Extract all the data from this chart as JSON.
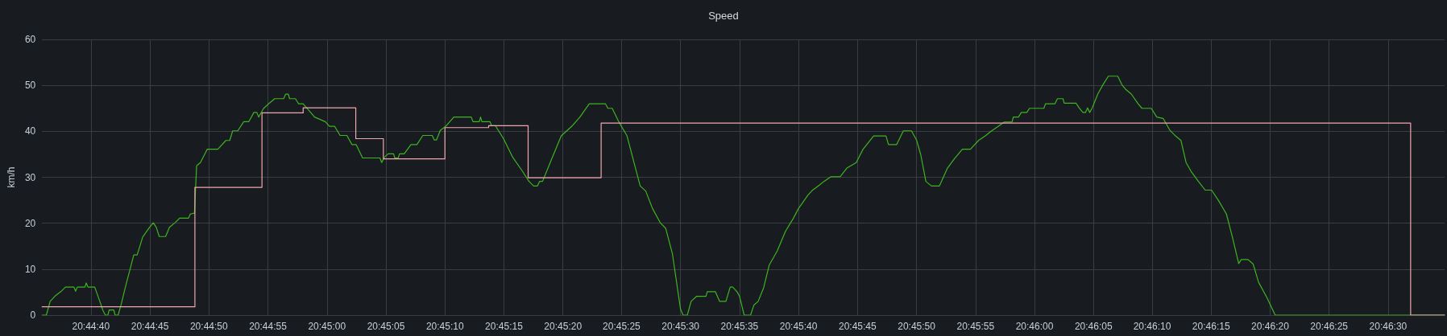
{
  "chart_data": {
    "type": "line",
    "title": "Speed",
    "ylabel": "km/h",
    "xlim": [
      20.74329,
      20.77633
    ],
    "ylim": [
      0,
      60
    ],
    "xticks": [
      {
        "value": 20.74444,
        "label": "20:44:40"
      },
      {
        "value": 20.74583,
        "label": "20:44:45"
      },
      {
        "value": 20.74722,
        "label": "20:44:50"
      },
      {
        "value": 20.74861,
        "label": "20:44:55"
      },
      {
        "value": 20.75,
        "label": "20:45:00"
      },
      {
        "value": 20.75139,
        "label": "20:45:05"
      },
      {
        "value": 20.75278,
        "label": "20:45:10"
      },
      {
        "value": 20.75417,
        "label": "20:45:15"
      },
      {
        "value": 20.75556,
        "label": "20:45:20"
      },
      {
        "value": 20.75694,
        "label": "20:45:25"
      },
      {
        "value": 20.75833,
        "label": "20:45:30"
      },
      {
        "value": 20.75972,
        "label": "20:45:35"
      },
      {
        "value": 20.76111,
        "label": "20:45:40"
      },
      {
        "value": 20.7625,
        "label": "20:45:45"
      },
      {
        "value": 20.76389,
        "label": "20:45:50"
      },
      {
        "value": 20.76528,
        "label": "20:45:55"
      },
      {
        "value": 20.76667,
        "label": "20:46:00"
      },
      {
        "value": 20.76806,
        "label": "20:46:05"
      },
      {
        "value": 20.76944,
        "label": "20:46:10"
      },
      {
        "value": 20.77083,
        "label": "20:46:15"
      },
      {
        "value": 20.77222,
        "label": "20:46:20"
      },
      {
        "value": 20.77361,
        "label": "20:46:25"
      },
      {
        "value": 20.775,
        "label": "20:46:30"
      }
    ],
    "yticks": [
      0,
      10,
      20,
      30,
      40,
      50,
      60
    ],
    "grid": true,
    "marker": "none",
    "line_style": "solid",
    "series": [
      {
        "color": "#3cb521",
        "x": [
          20.74329,
          20.74339,
          20.74348,
          20.74359,
          20.74373,
          20.74384,
          20.74404,
          20.74408,
          20.74412,
          20.7443,
          20.74433,
          20.74437,
          20.74453,
          20.74465,
          20.74472,
          20.74478,
          20.74484,
          20.74487,
          20.74498,
          20.74501,
          20.74508,
          20.74515,
          20.74525,
          20.74545,
          20.74553,
          20.74566,
          20.74582,
          20.74591,
          20.74598,
          20.74605,
          20.7462,
          20.74629,
          20.74642,
          20.74653,
          20.74674,
          20.74678,
          20.74688,
          20.74693,
          20.74702,
          20.74718,
          20.74743,
          20.74762,
          20.74771,
          20.74778,
          20.7479,
          20.74804,
          20.74816,
          20.74828,
          20.74835,
          20.74839,
          20.74851,
          20.74863,
          20.74877,
          20.74898,
          20.74903,
          20.74909,
          20.74912,
          20.74926,
          20.74933,
          20.74944,
          20.74971,
          20.74996,
          20.75006,
          20.75018,
          20.75031,
          20.75047,
          20.75059,
          20.75069,
          20.75084,
          20.75125,
          20.75129,
          20.75135,
          20.75144,
          20.75157,
          20.7516,
          20.75168,
          20.75171,
          20.75182,
          20.75198,
          20.75212,
          20.75226,
          20.75248,
          20.75253,
          20.75258,
          20.75267,
          20.7528,
          20.75299,
          20.7534,
          20.75344,
          20.75359,
          20.75362,
          20.75365,
          20.75384,
          20.75388,
          20.75397,
          20.75416,
          20.75438,
          20.7546,
          20.75476,
          20.75487,
          20.75496,
          20.75501,
          20.75508,
          20.75526,
          20.75552,
          20.75577,
          20.75596,
          20.75618,
          20.75656,
          20.75662,
          20.75672,
          20.75688,
          20.75707,
          20.75726,
          20.75738,
          20.75751,
          20.75767,
          20.75786,
          20.75798,
          20.75814,
          20.75833,
          20.75839,
          20.75849,
          20.75858,
          20.75871,
          20.75893,
          20.75896,
          20.75915,
          20.75925,
          20.7594,
          20.7595,
          20.75956,
          20.75966,
          20.75972,
          20.75983,
          20.75998,
          20.76006,
          20.76016,
          20.76029,
          20.76042,
          20.76061,
          20.7608,
          20.76099,
          20.76111,
          20.76133,
          20.76143,
          20.76159,
          20.76171,
          20.76187,
          20.76209,
          20.76225,
          20.76247,
          20.76263,
          20.76288,
          20.76317,
          20.76323,
          20.76342,
          20.76358,
          20.76377,
          20.76389,
          20.76399,
          20.76411,
          20.76424,
          20.76443,
          20.76462,
          20.76478,
          20.76497,
          20.76516,
          20.76535,
          20.76551,
          20.76566,
          20.76582,
          20.76595,
          20.76614,
          20.76617,
          20.76629,
          20.76636,
          20.76649,
          20.76655,
          20.76689,
          20.76693,
          20.76715,
          20.76721,
          20.76734,
          20.76737,
          20.76765,
          20.76772,
          20.76781,
          20.76787,
          20.76792,
          20.76797,
          20.76803,
          20.76816,
          20.76828,
          20.76841,
          20.76863,
          20.76873,
          20.76882,
          20.76895,
          20.76911,
          20.7692,
          20.76942,
          20.76955,
          20.7697,
          20.76986,
          20.76999,
          20.77012,
          20.77024,
          20.77037,
          20.77053,
          20.77069,
          20.77084,
          20.771,
          20.77119,
          20.77132,
          20.77148,
          20.77154,
          20.7717,
          20.77182,
          20.77195,
          20.77214,
          20.77234,
          20.77633
        ],
        "values": [
          0,
          0,
          3,
          4.1,
          5.1,
          6.1,
          6.1,
          5.2,
          6.1,
          6.1,
          7.0,
          6.1,
          6.1,
          3,
          1.1,
          0,
          0,
          1.1,
          1.1,
          0,
          0,
          2.2,
          6,
          13.1,
          13.1,
          17,
          19.1,
          20.1,
          19.1,
          17.1,
          17.1,
          19.1,
          20.1,
          21.1,
          21.1,
          22,
          22.2,
          32.5,
          33.2,
          36.1,
          36.1,
          38,
          38,
          40.1,
          40.1,
          42.1,
          42.1,
          44.1,
          44.1,
          43.1,
          45,
          46,
          47.1,
          47.1,
          48.1,
          48.1,
          47.1,
          47.1,
          46,
          46,
          43.1,
          42.1,
          41.1,
          41.1,
          39.1,
          39.1,
          37.1,
          37.1,
          34.2,
          34.2,
          33.2,
          34.3,
          35.1,
          35.1,
          34.2,
          34.2,
          35.1,
          35.1,
          37.1,
          37.1,
          39.1,
          39.1,
          38.1,
          38.1,
          40.2,
          41.1,
          43.1,
          43.1,
          42.1,
          42.1,
          43.1,
          42.1,
          42.1,
          41.2,
          41.2,
          38.4,
          34.3,
          31.4,
          29.1,
          28.1,
          28.1,
          29.1,
          29.1,
          33.2,
          39,
          41.1,
          43.1,
          46,
          46,
          45,
          45,
          42,
          39,
          32.3,
          28.1,
          27,
          23.2,
          20,
          18.9,
          13.3,
          1.3,
          0,
          0,
          3,
          4.1,
          4.1,
          5.1,
          5.1,
          3,
          3,
          6.1,
          6.1,
          5.1,
          4.1,
          0,
          0,
          2.2,
          3,
          6,
          10.9,
          14,
          18.2,
          21.1,
          23.2,
          26.1,
          27.1,
          28.2,
          29.1,
          30.1,
          30.1,
          32,
          33.2,
          36.1,
          39,
          39,
          37.1,
          37.1,
          40.1,
          40.1,
          38.1,
          34.9,
          29.1,
          28.1,
          28.1,
          32,
          34,
          36.1,
          36.1,
          38,
          39,
          40.1,
          41.1,
          42,
          42,
          43.1,
          43.1,
          44.1,
          44.1,
          45,
          45,
          46,
          46,
          47.1,
          47.1,
          46.1,
          46.1,
          45.1,
          44.1,
          44.1,
          45.1,
          44.1,
          45.1,
          48.1,
          50.1,
          52,
          52,
          50.1,
          49.1,
          48.1,
          46,
          45,
          45,
          43.1,
          42.8,
          40.2,
          39,
          38,
          33.2,
          31.1,
          29.1,
          27.2,
          27.2,
          25,
          22,
          17.4,
          11.2,
          12.1,
          12.1,
          11.1,
          7.1,
          3.9,
          0,
          0
        ]
      },
      {
        "type": "step",
        "color": "#f0a8ae",
        "x": [
          20.74329,
          20.74689,
          20.74847,
          20.74944,
          20.75068,
          20.75133,
          20.75278,
          20.75381,
          20.75474,
          20.75646,
          20.77553,
          20.77633
        ],
        "values": [
          1.8,
          27.8,
          44,
          45.1,
          38.4,
          34,
          40.8,
          41.2,
          29.9,
          41.8,
          0,
          0
        ]
      }
    ]
  }
}
